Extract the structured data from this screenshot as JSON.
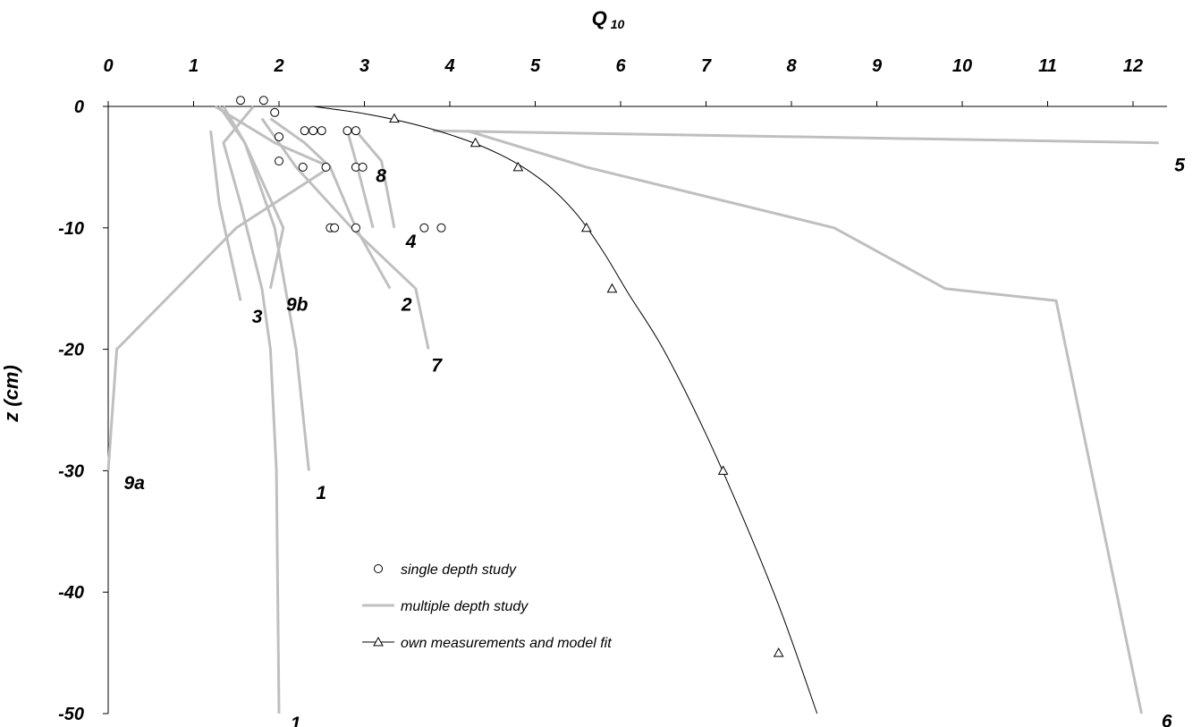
{
  "chart_data": {
    "type": "line",
    "xlabel": "Q",
    "xlabel_sub": "10",
    "ylabel": "z (cm)",
    "xlim": [
      0,
      12.3
    ],
    "ylim": [
      -50,
      0
    ],
    "x_ticks": [
      "0",
      "1",
      "2",
      "3",
      "4",
      "5",
      "6",
      "7",
      "8",
      "9",
      "10",
      "11",
      "12"
    ],
    "y_ticks": [
      "0",
      "-10",
      "-20",
      "-30",
      "-40",
      "-50"
    ],
    "x_axis_position": "top",
    "grid": false,
    "legend_position": "bottom-center",
    "legend": [
      {
        "label": "single depth study",
        "marker": "circle"
      },
      {
        "label": "multiple depth study",
        "marker": "line"
      },
      {
        "label": "own measurements and model fit",
        "marker": "triangle-line"
      }
    ],
    "single_depth_points": [
      {
        "x": 1.55,
        "y": 0.5
      },
      {
        "x": 1.82,
        "y": 0.5
      },
      {
        "x": 1.95,
        "y": -0.5
      },
      {
        "x": 2.0,
        "y": -2.5
      },
      {
        "x": 2.3,
        "y": -2.0
      },
      {
        "x": 2.4,
        "y": -2.0
      },
      {
        "x": 2.5,
        "y": -2.0
      },
      {
        "x": 2.8,
        "y": -2.0
      },
      {
        "x": 2.9,
        "y": -2.0
      },
      {
        "x": 2.0,
        "y": -4.5
      },
      {
        "x": 2.28,
        "y": -5.0
      },
      {
        "x": 2.55,
        "y": -5.0
      },
      {
        "x": 2.9,
        "y": -5.0
      },
      {
        "x": 2.98,
        "y": -5.0
      },
      {
        "x": 2.6,
        "y": -10.0
      },
      {
        "x": 2.65,
        "y": -10.0
      },
      {
        "x": 2.9,
        "y": -10.0
      },
      {
        "x": 3.7,
        "y": -10.0
      },
      {
        "x": 3.9,
        "y": -10.0
      }
    ],
    "multiple_depth_series": [
      {
        "name": "1",
        "points": [
          [
            1.7,
            0
          ],
          [
            1.35,
            -3
          ],
          [
            1.55,
            -8
          ],
          [
            1.8,
            -15
          ],
          [
            1.9,
            -20
          ],
          [
            1.97,
            -30
          ],
          [
            2.0,
            -50
          ]
        ]
      },
      {
        "name": "1",
        "points": [
          [
            1.35,
            0
          ],
          [
            1.6,
            -3
          ],
          [
            1.95,
            -10
          ],
          [
            2.2,
            -20
          ],
          [
            2.35,
            -30
          ]
        ]
      },
      {
        "name": "2",
        "points": [
          [
            1.9,
            -1
          ],
          [
            2.3,
            -3
          ],
          [
            2.6,
            -5
          ],
          [
            2.9,
            -10
          ],
          [
            3.3,
            -15
          ]
        ]
      },
      {
        "name": "3",
        "points": [
          [
            1.2,
            -2
          ],
          [
            1.3,
            -8
          ],
          [
            1.55,
            -16
          ]
        ]
      },
      {
        "name": "4",
        "points": [
          [
            2.9,
            -2
          ],
          [
            3.2,
            -4.5
          ],
          [
            3.35,
            -10
          ]
        ]
      },
      {
        "name": "5",
        "points": [
          [
            3.8,
            -2
          ],
          [
            12.3,
            -3
          ]
        ]
      },
      {
        "name": "6",
        "points": [
          [
            4.2,
            -2
          ],
          [
            5.6,
            -5
          ],
          [
            8.5,
            -10
          ],
          [
            9.8,
            -15
          ],
          [
            11.1,
            -16
          ],
          [
            12.1,
            -50
          ]
        ]
      },
      {
        "name": "7",
        "points": [
          [
            1.8,
            -1
          ],
          [
            2.2,
            -5
          ],
          [
            2.85,
            -10
          ],
          [
            3.6,
            -15
          ],
          [
            3.75,
            -20
          ]
        ]
      },
      {
        "name": "8",
        "points": [
          [
            2.8,
            -2
          ],
          [
            2.9,
            -4.5
          ],
          [
            3.1,
            -10
          ]
        ]
      },
      {
        "name": "9a",
        "points": [
          [
            1.25,
            0
          ],
          [
            1.95,
            -3
          ],
          [
            2.6,
            -5
          ],
          [
            1.5,
            -10
          ],
          [
            0.1,
            -20
          ],
          [
            0.0,
            -30
          ]
        ]
      },
      {
        "name": "9b",
        "points": [
          [
            1.3,
            0
          ],
          [
            1.6,
            -3
          ],
          [
            2.05,
            -10
          ],
          [
            1.9,
            -15
          ]
        ]
      }
    ],
    "own_measurements": [
      {
        "x": 3.35,
        "y": -1.0
      },
      {
        "x": 4.3,
        "y": -3.0
      },
      {
        "x": 4.8,
        "y": -5.0
      },
      {
        "x": 5.6,
        "y": -10.0
      },
      {
        "x": 5.9,
        "y": -15.0
      },
      {
        "x": 7.2,
        "y": -30.0
      },
      {
        "x": 7.85,
        "y": -45.0
      }
    ],
    "model_fit": [
      [
        2.4,
        0
      ],
      [
        3.0,
        -0.6
      ],
      [
        3.6,
        -1.5
      ],
      [
        4.2,
        -2.8
      ],
      [
        4.6,
        -4.0
      ],
      [
        4.9,
        -5.2
      ],
      [
        5.2,
        -6.8
      ],
      [
        5.5,
        -9.0
      ],
      [
        5.8,
        -12.0
      ],
      [
        6.1,
        -15.5
      ],
      [
        6.5,
        -20.0
      ],
      [
        7.0,
        -27.0
      ],
      [
        7.5,
        -35.0
      ],
      [
        7.9,
        -42.0
      ],
      [
        8.3,
        -50.0
      ]
    ],
    "curve_labels": [
      {
        "text": "1",
        "x": 2.05,
        "y": -50
      },
      {
        "text": "1",
        "x": 2.35,
        "y": -31
      },
      {
        "text": "2",
        "x": 3.35,
        "y": -15.5
      },
      {
        "text": "3",
        "x": 1.6,
        "y": -16.5
      },
      {
        "text": "4",
        "x": 3.4,
        "y": -10.3
      },
      {
        "text": "5",
        "x": 12.4,
        "y": -4
      },
      {
        "text": "6",
        "x": 12.25,
        "y": -49.8
      },
      {
        "text": "7",
        "x": 3.7,
        "y": -20.5
      },
      {
        "text": "8",
        "x": 3.05,
        "y": -4.9
      },
      {
        "text": "9a",
        "x": 0.1,
        "y": -30.2
      },
      {
        "text": "9b",
        "x": 2.0,
        "y": -15.5
      }
    ]
  }
}
